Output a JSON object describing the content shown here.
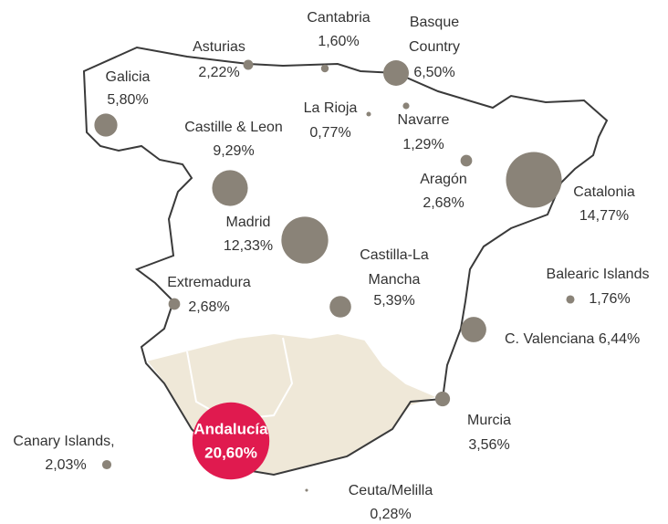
{
  "regions": [
    {
      "name": "Galicia",
      "value": 5.8,
      "value_label": "5,80%"
    },
    {
      "name": "Asturias",
      "value": 2.22,
      "value_label": "2,22%"
    },
    {
      "name": "Cantabria",
      "value": 1.6,
      "value_label": "1,60%"
    },
    {
      "name": "Basque Country",
      "value": 6.5,
      "value_label": "6,50%"
    },
    {
      "name": "La Rioja",
      "value": 0.77,
      "value_label": "0,77%"
    },
    {
      "name": "Navarre",
      "value": 1.29,
      "value_label": "1,29%"
    },
    {
      "name": "Castille & Leon",
      "value": 9.29,
      "value_label": "9,29%"
    },
    {
      "name": "Aragón",
      "value": 2.68,
      "value_label": "2,68%"
    },
    {
      "name": "Catalonia",
      "value": 14.77,
      "value_label": "14,77%"
    },
    {
      "name": "Madrid",
      "value": 12.33,
      "value_label": "12,33%"
    },
    {
      "name": "Extremadura",
      "value": 2.68,
      "value_label": "2,68%"
    },
    {
      "name": "Castilla-La Mancha",
      "value": 5.39,
      "value_label": "5,39%"
    },
    {
      "name": "Balearic Islands",
      "value": 1.76,
      "value_label": "1,76%"
    },
    {
      "name": "C. Valenciana",
      "value": 6.44,
      "value_label": "6,44%"
    },
    {
      "name": "Murcia",
      "value": 3.56,
      "value_label": "3,56%"
    },
    {
      "name": "Andalucía",
      "value": 20.6,
      "value_label": "20,60%"
    },
    {
      "name": "Canary Islands,",
      "value": 2.03,
      "value_label": "2,03%"
    },
    {
      "name": "Ceuta/Melilla",
      "value": 0.28,
      "value_label": "0,28%"
    }
  ]
}
